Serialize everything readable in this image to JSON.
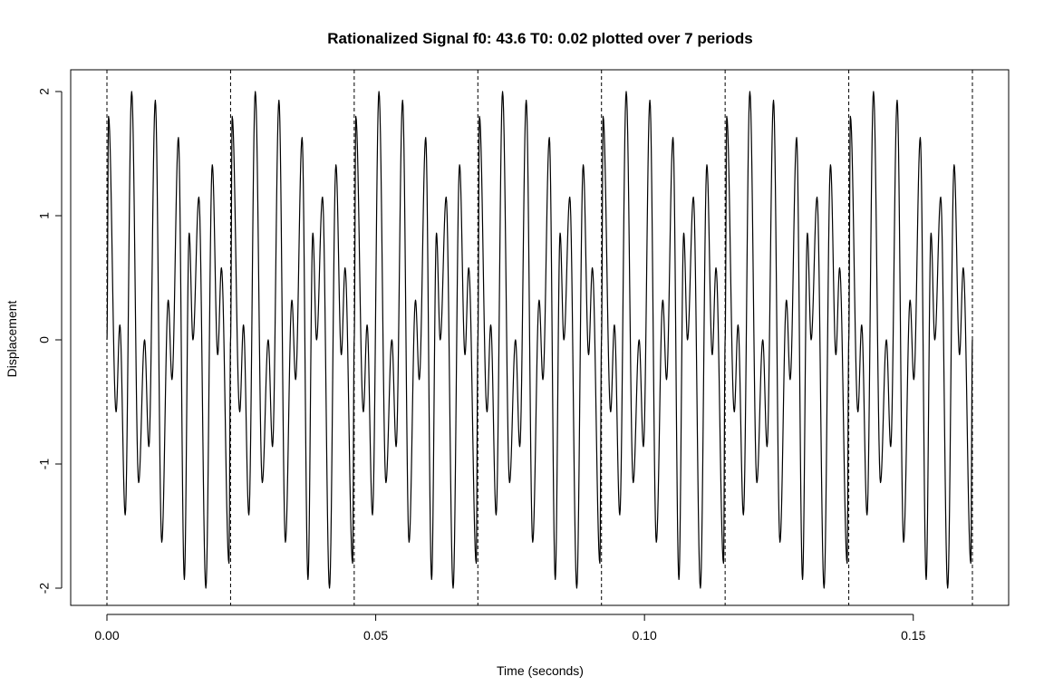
{
  "chart_data": {
    "type": "line",
    "title": "Rationalized Signal f0: 43.6 T0: 0.02 plotted over 7 periods",
    "xlabel": "Time (seconds)",
    "ylabel": "Displacement",
    "xlim": [
      0,
      0.161
    ],
    "ylim": [
      -2,
      2
    ],
    "x_ticks": [
      {
        "value": 0.0,
        "label": "0.00"
      },
      {
        "value": 0.05,
        "label": "0.05"
      },
      {
        "value": 0.1,
        "label": "0.10"
      },
      {
        "value": 0.15,
        "label": "0.15"
      }
    ],
    "y_ticks": [
      {
        "value": -2,
        "label": "-2"
      },
      {
        "value": -1,
        "label": "-1"
      },
      {
        "value": 0,
        "label": "0"
      },
      {
        "value": 1,
        "label": "1"
      },
      {
        "value": 2,
        "label": "2"
      }
    ],
    "period_markers": [
      0,
      0.023,
      0.046,
      0.069,
      0.092,
      0.115,
      0.138,
      0.161
    ],
    "series": [
      {
        "period_extrema": [
          [
            0.0,
            0.0
          ],
          [
            0.0003,
            1.8
          ],
          [
            0.0017,
            -0.58
          ],
          [
            0.0024,
            0.12
          ],
          [
            0.0034,
            -1.41
          ],
          [
            0.0046,
            2.0
          ],
          [
            0.0059,
            -1.15
          ],
          [
            0.007,
            0.0
          ],
          [
            0.0078,
            -0.86
          ],
          [
            0.009,
            1.93
          ],
          [
            0.0102,
            -1.63
          ],
          [
            0.0114,
            0.32
          ],
          [
            0.0121,
            -0.32
          ],
          [
            0.0133,
            1.63
          ],
          [
            0.0144,
            -1.93
          ],
          [
            0.0153,
            0.86
          ],
          [
            0.016,
            0.0
          ],
          [
            0.0171,
            1.15
          ],
          [
            0.0184,
            -2.0
          ],
          [
            0.0196,
            1.41
          ],
          [
            0.0206,
            -0.12
          ],
          [
            0.0213,
            0.58
          ],
          [
            0.0227,
            -1.8
          ],
          [
            0.023,
            0.0
          ]
        ]
      }
    ]
  }
}
